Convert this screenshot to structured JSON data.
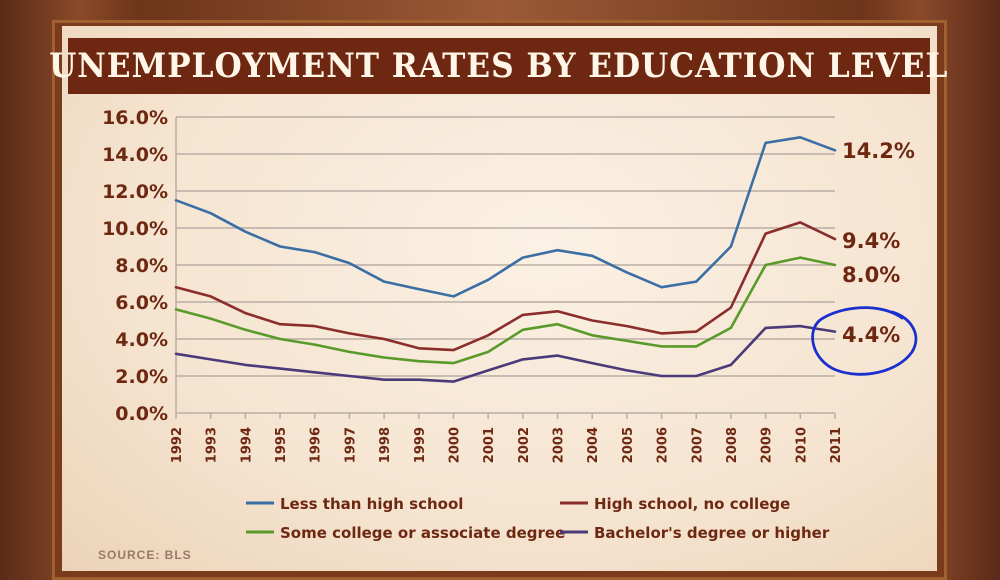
{
  "chart_data": {
    "type": "line",
    "title": "UNEMPLOYMENT RATES BY EDUCATION LEVEL",
    "x": [
      "1992",
      "1993",
      "1994",
      "1995",
      "1996",
      "1997",
      "1998",
      "1999",
      "2000",
      "2001",
      "2002",
      "2003",
      "2004",
      "2005",
      "2006",
      "2007",
      "2008",
      "2009",
      "2010",
      "2011"
    ],
    "y_ticks": [
      "0.0%",
      "2.0%",
      "4.0%",
      "6.0%",
      "8.0%",
      "10.0%",
      "12.0%",
      "14.0%",
      "16.0%"
    ],
    "ylim": [
      0,
      16
    ],
    "grid": true,
    "series": [
      {
        "name": "Less than high school",
        "color": "#3a6ea5",
        "end_label": "14.2%",
        "values": [
          11.5,
          10.8,
          9.8,
          9.0,
          8.7,
          8.1,
          7.1,
          6.7,
          6.3,
          7.2,
          8.4,
          8.8,
          8.5,
          7.6,
          6.8,
          7.1,
          9.0,
          14.6,
          14.9,
          14.2
        ]
      },
      {
        "name": "High school, no college",
        "color": "#8b2d2a",
        "end_label": "9.4%",
        "values": [
          6.8,
          6.3,
          5.4,
          4.8,
          4.7,
          4.3,
          4.0,
          3.5,
          3.4,
          4.2,
          5.3,
          5.5,
          5.0,
          4.7,
          4.3,
          4.4,
          5.7,
          9.7,
          10.3,
          9.4
        ]
      },
      {
        "name": "Some college or associate degree",
        "color": "#5a9a2a",
        "end_label": "8.0%",
        "values": [
          5.6,
          5.1,
          4.5,
          4.0,
          3.7,
          3.3,
          3.0,
          2.8,
          2.7,
          3.3,
          4.5,
          4.8,
          4.2,
          3.9,
          3.6,
          3.6,
          4.6,
          8.0,
          8.4,
          8.0
        ]
      },
      {
        "name": "Bachelor's degree or higher",
        "color": "#4a3a7a",
        "end_label": "4.4%",
        "values": [
          3.2,
          2.9,
          2.6,
          2.4,
          2.2,
          2.0,
          1.8,
          1.8,
          1.7,
          2.3,
          2.9,
          3.1,
          2.7,
          2.3,
          2.0,
          2.0,
          2.6,
          4.6,
          4.7,
          4.4
        ]
      }
    ],
    "legend_position": "bottom"
  },
  "source": "SOURCE: BLS",
  "annotation_color": "#1a2fd0"
}
